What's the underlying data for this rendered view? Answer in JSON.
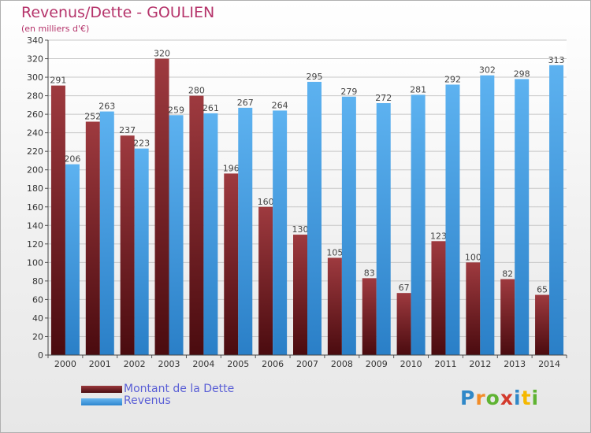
{
  "title": "Revenus/Dette - GOULIEN",
  "subtitle": "(en milliers d'€)",
  "chart_data": {
    "type": "bar",
    "categories": [
      "2000",
      "2001",
      "2002",
      "2003",
      "2004",
      "2005",
      "2006",
      "2007",
      "2008",
      "2009",
      "2010",
      "2011",
      "2012",
      "2013",
      "2014"
    ],
    "series": [
      {
        "name": "Montant de la Dette",
        "color": "#7a1e22",
        "values": [
          291,
          252,
          237,
          320,
          280,
          196,
          160,
          130,
          105,
          83,
          67,
          123,
          100,
          82,
          65
        ]
      },
      {
        "name": "Revenus",
        "color": "#3d97dd",
        "values": [
          206,
          263,
          223,
          259,
          261,
          267,
          264,
          295,
          279,
          272,
          281,
          292,
          302,
          298,
          313
        ]
      }
    ],
    "ylim": [
      0,
      340
    ],
    "yticks": [
      0,
      20,
      40,
      60,
      80,
      100,
      120,
      140,
      160,
      180,
      200,
      220,
      240,
      260,
      280,
      300,
      320,
      340
    ],
    "grid": true,
    "legend": "bottom-left"
  },
  "legend": {
    "debt_label": "Montant de la Dette",
    "revenue_label": "Revenus"
  },
  "logo": {
    "letters": [
      "P",
      "r",
      "o",
      "x",
      "i",
      "t",
      "i"
    ],
    "colors": [
      "#2f88c8",
      "#f28c28",
      "#5fb332",
      "#d33a2c",
      "#2f88c8",
      "#f5b800",
      "#5fb332"
    ]
  }
}
